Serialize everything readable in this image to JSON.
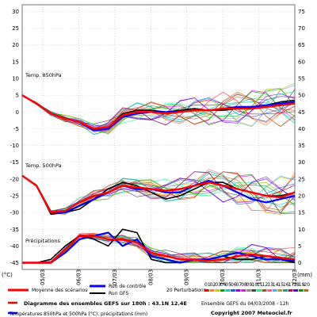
{
  "chart_data": {
    "type": "line",
    "title": "Diagramme des ensembles GEFS sur 180h : 43.1N 12.4E",
    "subtitle": "Températures 850hPa et 500hPa (°C), précipitations (mm)",
    "ylabel_left": "(°C)",
    "ylabel_right": "(mm)",
    "left_ticks": [
      30,
      25,
      20,
      15,
      10,
      5,
      0,
      -5,
      -10,
      -15,
      -20,
      -25,
      -30,
      -35,
      -40,
      -45
    ],
    "right_ticks": [
      75,
      70,
      65,
      60,
      55,
      50,
      45,
      40,
      35,
      30,
      25,
      20,
      15,
      10,
      5,
      0
    ],
    "ylim": [
      -47,
      32
    ],
    "x_labels": [
      "05/03",
      "06/03",
      "07/03",
      "08/03",
      "09/03",
      "10/03",
      "11/03",
      "12/03"
    ],
    "panels": [
      {
        "label": "Temp. 850hPa",
        "series": [
          {
            "name": "Moyenne des scénarios",
            "color": "#ff0000",
            "values": [
              5,
              2.5,
              -0.5,
              -2,
              -3,
              -5,
              -4.5,
              -1,
              0,
              0,
              -0.5,
              0,
              0.5,
              0.5,
              1,
              1,
              1,
              1.5,
              2,
              2.5
            ]
          },
          {
            "name": "Run de contrôle",
            "color": "#0000ff",
            "values": [
              5,
              2.5,
              -0.5,
              -2,
              -3,
              -5.5,
              -5,
              -1.5,
              -0.5,
              0,
              0,
              0,
              0.5,
              0.5,
              1,
              1.5,
              1.5,
              2,
              2.5,
              3
            ]
          },
          {
            "name": "Run GFS",
            "color": "#000000",
            "values": [
              5,
              2.5,
              -0.5,
              -2,
              -3,
              -5,
              -4.5,
              -0.5,
              0.5,
              0.5,
              0,
              0.5,
              1,
              0.5,
              0.5,
              1,
              1.5,
              2,
              3,
              3.5
            ]
          }
        ]
      },
      {
        "label": "Temp. 500hPa",
        "series": [
          {
            "name": "Moyenne des scénarios",
            "color": "#ff0000",
            "values": [
              -19,
              -22,
              -30,
              -29.5,
              -27,
              -25,
              -24,
              -22,
              -22.5,
              -23,
              -23.5,
              -23,
              -22,
              -21,
              -22,
              -23,
              -24,
              -25,
              -25.5,
              -24
            ]
          },
          {
            "name": "Run de contrôle",
            "color": "#0000ff",
            "values": [
              -19,
              -22,
              -30,
              -30,
              -28,
              -26,
              -24,
              -22,
              -23,
              -23,
              -24,
              -24,
              -22,
              -20.5,
              -22,
              -24,
              -26,
              -27,
              -26,
              -25
            ]
          },
          {
            "name": "Run GFS",
            "color": "#000000",
            "values": [
              -19,
              -22,
              -30.5,
              -30,
              -29,
              -26,
              -23,
              -21,
              -22,
              -24,
              -26,
              -25,
              -23,
              -21,
              -21,
              -23,
              -24,
              -25,
              -25,
              -24
            ]
          }
        ]
      },
      {
        "label": "Précipitations",
        "series": [
          {
            "name": "Moyenne des scénarios",
            "color": "#ff0000",
            "values": [
              -45,
              -45,
              -45,
              -41,
              -37,
              -37,
              -38,
              -38,
              -39,
              -42,
              -43,
              -44,
              -44,
              -44.5,
              -44,
              -43,
              -42.5,
              -43,
              -43.5,
              -44
            ]
          },
          {
            "name": "Run de contrôle",
            "color": "#0000ff",
            "values": [
              -45,
              -45,
              -45,
              -42,
              -38,
              -37,
              -36,
              -40,
              -38,
              -43,
              -44,
              -45,
              -44,
              -44,
              -43,
              -42,
              -43,
              -44,
              -44,
              -44.5
            ]
          },
          {
            "name": "Run GFS",
            "color": "#000000",
            "values": [
              -45,
              -45,
              -44,
              -40,
              -37,
              -38,
              -40,
              -35,
              -36,
              -44,
              -45,
              -45,
              -44,
              -44,
              -43,
              -44,
              -44,
              -43,
              -44,
              -45
            ]
          }
        ]
      }
    ],
    "legend": {
      "mean": "Moyenne des scénarios",
      "control": "Run de contrôle",
      "gfs": "Run GFS",
      "perturbations": "20 Perturbations",
      "perturbation_ids": [
        "01",
        "02",
        "03",
        "04",
        "05",
        "06",
        "07",
        "08",
        "09",
        "10",
        "11",
        "12",
        "13",
        "14",
        "15",
        "16",
        "17",
        "18",
        "19",
        "20"
      ],
      "perturbation_colors": [
        "#ff0000",
        "#ff8800",
        "#cccc00",
        "#00aa00",
        "#00cccc",
        "#0066ff",
        "#8800ff",
        "#ff00ff",
        "#888888",
        "#444444",
        "#00ff88",
        "#aa5500",
        "#ff5599",
        "#55aaff",
        "#aaaa00",
        "#00aa88",
        "#cc0044",
        "#6600cc",
        "#009900",
        "#cc6600"
      ]
    },
    "grid": true,
    "footer": {
      "title": "Diagramme des ensembles GEFS sur 180h : 43.1N 12.4E",
      "subtitle": "Températures 850hPa et 500hPa (°C), précipitations (mm)",
      "run": "Ensemble GEFS du 04/03/2008 - 12h",
      "copyright": "Copyright 2007 Meteociel.fr"
    }
  }
}
